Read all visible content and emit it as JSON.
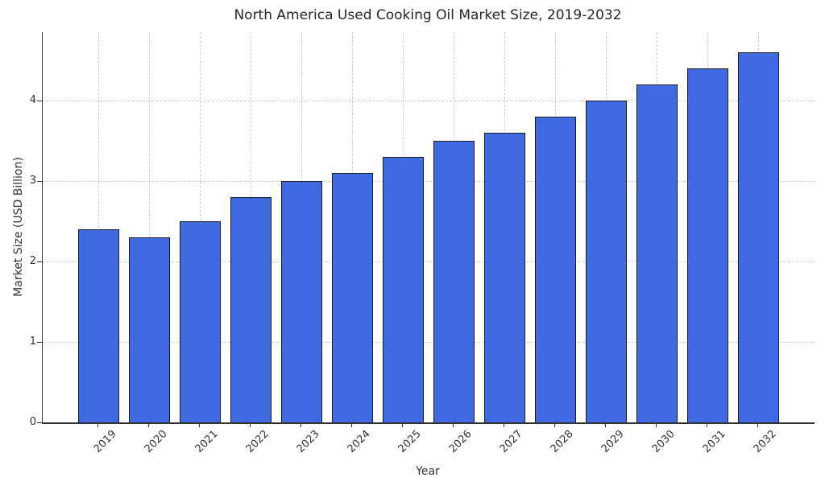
{
  "chart_data": {
    "type": "bar",
    "title": "North America Used Cooking Oil Market Size, 2019-2032",
    "xlabel": "Year",
    "ylabel": "Market Size (USD Billion)",
    "categories": [
      "2019",
      "2020",
      "2021",
      "2022",
      "2023",
      "2024",
      "2025",
      "2026",
      "2027",
      "2028",
      "2029",
      "2030",
      "2031",
      "2032"
    ],
    "values": [
      2.4,
      2.3,
      2.5,
      2.8,
      3.0,
      3.1,
      3.3,
      3.5,
      3.6,
      3.8,
      4.0,
      4.2,
      4.4,
      4.6
    ],
    "ylim": [
      0,
      4.85
    ],
    "yticks": [
      0,
      1,
      2,
      3,
      4
    ],
    "x_tick_rotation": 45,
    "grid": "both-dashed",
    "legend": "none",
    "bar_color": "#4169E1",
    "bar_edge_color": "#1c1c1c",
    "grid_color": "#cccccc",
    "spine_color": "#303030",
    "text_color": "#333333"
  }
}
